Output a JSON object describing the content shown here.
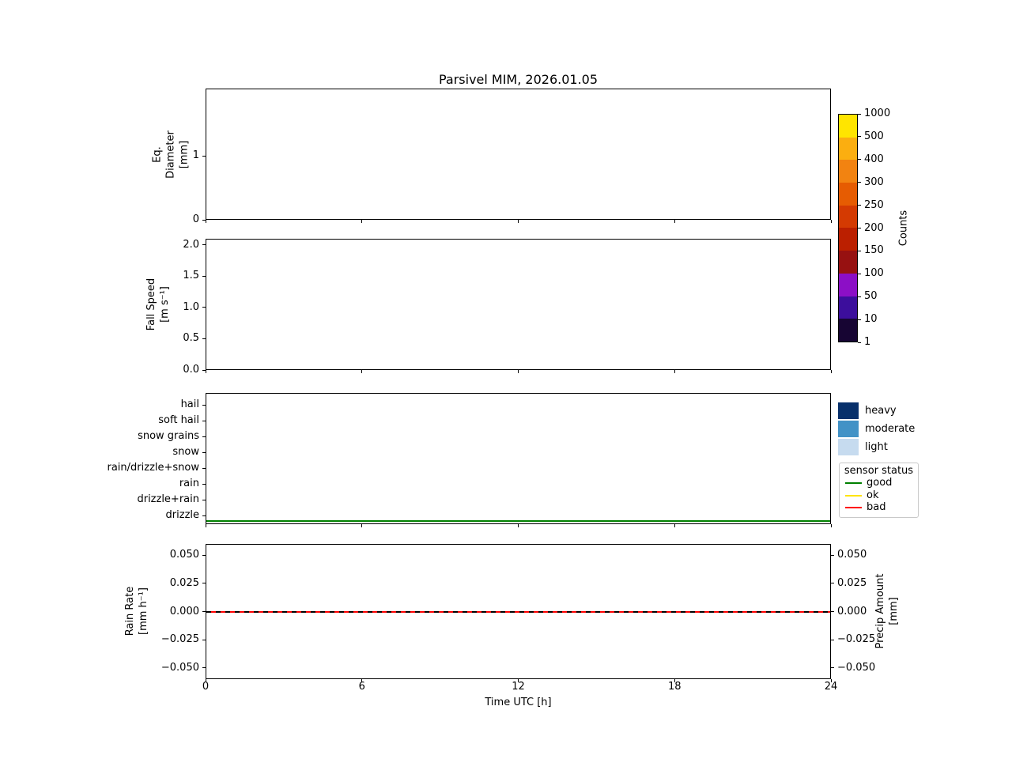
{
  "figure": {
    "title": "Parsivel MIM, 2026.01.05",
    "xlabel": "Time UTC [h]",
    "xlim": [
      0,
      24
    ],
    "xticks": [
      {
        "v": 0,
        "label": "0"
      },
      {
        "v": 6,
        "label": "6"
      },
      {
        "v": 12,
        "label": "12"
      },
      {
        "v": 18,
        "label": "18"
      },
      {
        "v": 24,
        "label": "24"
      }
    ]
  },
  "chart_data": [
    {
      "type": "heatmap",
      "name": "equivalent-diameter-spectrum",
      "ylabel": "Eq.\nDiameter\n[mm]",
      "ylim": [
        0,
        2.05
      ],
      "yticks": [
        {
          "v": 0,
          "label": "0"
        },
        {
          "v": 1,
          "label": "1"
        }
      ],
      "series": []
    },
    {
      "type": "heatmap",
      "name": "fall-speed-spectrum",
      "ylabel": "Fall Speed\n[m s⁻¹]",
      "ylim": [
        0,
        2.1
      ],
      "yticks": [
        {
          "v": 0.0,
          "label": "0.0"
        },
        {
          "v": 0.5,
          "label": "0.5"
        },
        {
          "v": 1.0,
          "label": "1.0"
        },
        {
          "v": 1.5,
          "label": "1.5"
        },
        {
          "v": 2.0,
          "label": "2.0"
        }
      ],
      "series": []
    },
    {
      "type": "line",
      "name": "precipitation-type",
      "categories_top_to_bottom": [
        "hail",
        "soft hail",
        "snow grains",
        "snow",
        "rain/drizzle+snow",
        "rain",
        "drizzle+rain",
        "drizzle"
      ],
      "series": [
        {
          "name": "sensor status: good",
          "color": "#008000",
          "x": [
            0,
            24
          ],
          "y": "constant, just below drizzle row"
        }
      ]
    },
    {
      "type": "line",
      "name": "rain-rate-and-precip-amount",
      "ylabel": "Rain Rate\n[mm h⁻¹]",
      "right_ylabel": "Precip Amount\n[mm]",
      "ylim": [
        -0.06,
        0.06
      ],
      "yticks": [
        {
          "v": 0.05,
          "label": "0.050"
        },
        {
          "v": 0.025,
          "label": "0.025"
        },
        {
          "v": 0.0,
          "label": "0.000"
        },
        {
          "v": -0.025,
          "label": "−0.025"
        },
        {
          "v": -0.05,
          "label": "−0.050"
        }
      ],
      "series": [
        {
          "name": "Rain Rate",
          "color": "#ff0000",
          "linestyle": "solid",
          "x": [
            0,
            24
          ],
          "y_constant": 0.0
        },
        {
          "name": "Precip Amount",
          "color": "#000000",
          "linestyle": "dashed",
          "x": [
            0,
            24
          ],
          "y_constant": 0.0
        }
      ]
    }
  ],
  "colorbar": {
    "label": "Counts",
    "ticks": [
      "1000",
      "500",
      "400",
      "300",
      "250",
      "200",
      "150",
      "100",
      "50",
      "10",
      "1"
    ],
    "segment_colors_top_to_bottom": [
      "#ffe500",
      "#fbae10",
      "#f28311",
      "#e65c02",
      "#d43a02",
      "#bb1f00",
      "#971111",
      "#8c0fc6",
      "#3c0e9c",
      "#170533"
    ]
  },
  "intensity_legend": {
    "items": [
      {
        "label": "heavy",
        "color": "#08306b"
      },
      {
        "label": "moderate",
        "color": "#4292c6"
      },
      {
        "label": "light",
        "color": "#c6dbef"
      }
    ]
  },
  "status_legend": {
    "title": "sensor status",
    "items": [
      {
        "label": "good",
        "color": "#008000"
      },
      {
        "label": "ok",
        "color": "#ffe400"
      },
      {
        "label": "bad",
        "color": "#ff0000"
      }
    ]
  }
}
